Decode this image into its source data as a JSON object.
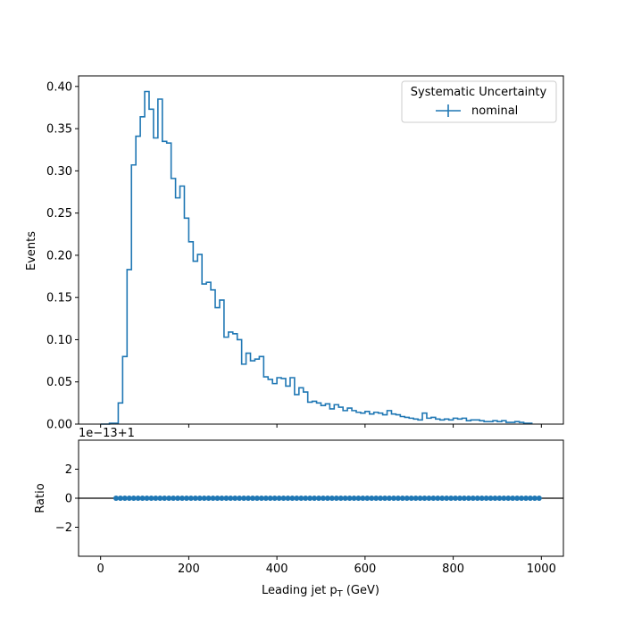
{
  "chart_data": [
    {
      "type": "line",
      "panel": "main",
      "drawstyle": "step",
      "ylabel": "Events",
      "xlim": [
        -50,
        1050
      ],
      "ylim": [
        0,
        0.4125
      ],
      "yticks": [
        "0.00",
        "0.05",
        "0.10",
        "0.15",
        "0.20",
        "0.25",
        "0.30",
        "0.35",
        "0.40"
      ],
      "bin_edges_start": 0,
      "bin_width": 10,
      "series": [
        {
          "name": "nominal",
          "color": "#1f77b4",
          "values": [
            0,
            0,
            0.001,
            0.001,
            0.025,
            0.08,
            0.183,
            0.307,
            0.341,
            0.364,
            0.394,
            0.373,
            0.339,
            0.385,
            0.335,
            0.333,
            0.291,
            0.268,
            0.282,
            0.244,
            0.216,
            0.193,
            0.201,
            0.166,
            0.168,
            0.159,
            0.138,
            0.147,
            0.103,
            0.109,
            0.107,
            0.1,
            0.071,
            0.084,
            0.075,
            0.077,
            0.08,
            0.056,
            0.053,
            0.048,
            0.055,
            0.054,
            0.045,
            0.055,
            0.035,
            0.043,
            0.038,
            0.026,
            0.027,
            0.025,
            0.022,
            0.024,
            0.018,
            0.023,
            0.02,
            0.016,
            0.019,
            0.016,
            0.014,
            0.013,
            0.015,
            0.012,
            0.014,
            0.013,
            0.011,
            0.016,
            0.012,
            0.011,
            0.009,
            0.008,
            0.007,
            0.006,
            0.005,
            0.013,
            0.007,
            0.008,
            0.006,
            0.005,
            0.006,
            0.005,
            0.007,
            0.006,
            0.007,
            0.004,
            0.005,
            0.005,
            0.004,
            0.003,
            0.003,
            0.004,
            0.003,
            0.004,
            0.002,
            0.002,
            0.003,
            0.002,
            0.001,
            0.001
          ]
        }
      ],
      "legend": {
        "title": "Systematic Uncertainty",
        "entries": [
          "nominal"
        ],
        "location": "upper right"
      }
    },
    {
      "type": "scatter",
      "panel": "ratio",
      "xlabel": "Leading jet  p_T (GeV)",
      "ylabel": "Ratio",
      "offset_text": "1e−13+1",
      "xlim": [
        -50,
        1050
      ],
      "ylim": [
        -4,
        4
      ],
      "xticks": [
        "0",
        "200",
        "400",
        "600",
        "800",
        "1000"
      ],
      "yticks": [
        "−2",
        "0",
        "2"
      ],
      "reference_line": 0,
      "series": [
        {
          "name": "nominal",
          "color": "#1f77b4",
          "x_start": 35,
          "x_step": 10,
          "count": 97,
          "y": 0
        }
      ]
    }
  ]
}
